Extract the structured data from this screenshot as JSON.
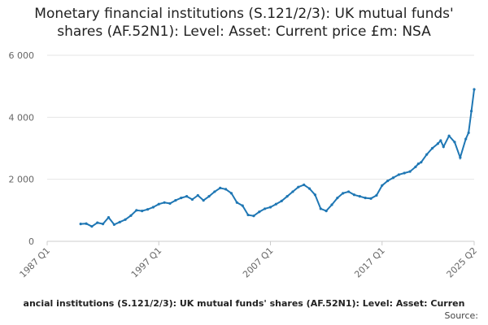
{
  "title_lines": [
    "Monetary financial institutions (S.121/2/3): UK mutual funds'",
    "shares (AF.52N1): Level: Asset: Current price £m: NSA"
  ],
  "footer": {
    "caption": "ancial institutions (S.121/2/3): UK mutual funds' shares (AF.52N1): Level: Asset: Curren",
    "source_label": "Source:"
  },
  "chart_data": {
    "type": "line",
    "title": "Monetary financial institutions (S.121/2/3): UK mutual funds' shares (AF.52N1): Level: Asset: Current price £m: NSA",
    "xlabel": "",
    "ylabel": "",
    "ylim": [
      0,
      6000
    ],
    "yticks": [
      0,
      2000,
      4000,
      6000
    ],
    "ytick_labels": [
      "0",
      "2 000",
      "4 000",
      "6 000"
    ],
    "xlim": [
      1987.0,
      2025.25
    ],
    "xticks": [
      1987.0,
      1997.0,
      2007.0,
      2017.0,
      2025.25
    ],
    "xtick_labels": [
      "1987 Q1",
      "1997 Q1",
      "2007 Q1",
      "2017 Q1",
      "2025 Q2"
    ],
    "grid": "horizontal",
    "series": [
      {
        "color": "#1f77b4",
        "x": [
          1990.0,
          1990.5,
          1991.0,
          1991.5,
          1992.0,
          1992.5,
          1993.0,
          1993.5,
          1994.0,
          1994.5,
          1995.0,
          1995.5,
          1996.0,
          1996.5,
          1997.0,
          1997.5,
          1998.0,
          1998.5,
          1999.0,
          1999.5,
          2000.0,
          2000.5,
          2001.0,
          2001.5,
          2002.0,
          2002.5,
          2003.0,
          2003.5,
          2004.0,
          2004.5,
          2005.0,
          2005.5,
          2006.0,
          2006.5,
          2007.0,
          2007.5,
          2008.0,
          2008.5,
          2009.0,
          2009.5,
          2010.0,
          2010.5,
          2011.0,
          2011.5,
          2012.0,
          2012.5,
          2013.0,
          2013.5,
          2014.0,
          2014.5,
          2015.0,
          2015.5,
          2016.0,
          2016.5,
          2017.0,
          2017.5,
          2018.0,
          2018.5,
          2019.0,
          2019.5,
          2020.0,
          2020.25,
          2020.5,
          2021.0,
          2021.5,
          2022.0,
          2022.25,
          2022.5,
          2023.0,
          2023.5,
          2024.0,
          2024.5,
          2024.75,
          2025.0,
          2025.25
        ],
        "values": [
          560,
          570,
          480,
          600,
          560,
          770,
          540,
          620,
          700,
          830,
          1000,
          980,
          1030,
          1100,
          1200,
          1250,
          1220,
          1320,
          1400,
          1450,
          1350,
          1480,
          1320,
          1450,
          1600,
          1720,
          1680,
          1550,
          1250,
          1150,
          850,
          820,
          950,
          1050,
          1100,
          1200,
          1300,
          1450,
          1600,
          1750,
          1820,
          1700,
          1500,
          1050,
          980,
          1180,
          1400,
          1550,
          1600,
          1500,
          1450,
          1400,
          1380,
          1480,
          1800,
          1950,
          2050,
          2150,
          2200,
          2250,
          2400,
          2500,
          2550,
          2800,
          3000,
          3150,
          3250,
          3050,
          3400,
          3200,
          2700,
          3300,
          3500,
          4200,
          4900
        ]
      }
    ]
  }
}
